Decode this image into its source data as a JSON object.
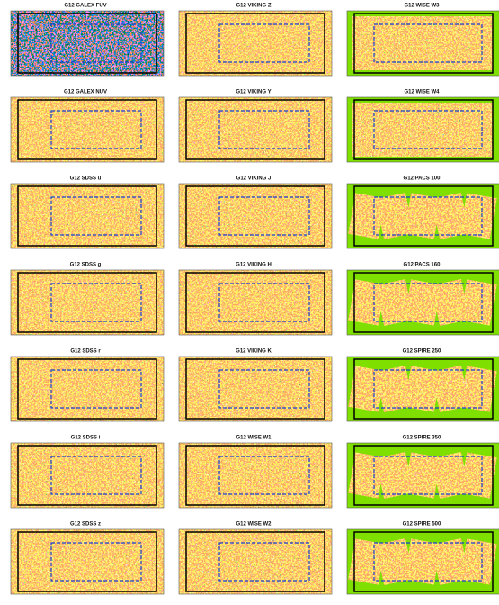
{
  "panels": [
    {
      "title": "G12 GALEX FUV"
    },
    {
      "title": "G12 GALEX NUV"
    },
    {
      "title": "G12 SDSS u"
    },
    {
      "title": "G12 SDSS g"
    },
    {
      "title": "G12 SDSS r"
    },
    {
      "title": "G12 SDSS i"
    },
    {
      "title": "G12 SDSS z"
    },
    {
      "title": "G12 VIKING Z"
    },
    {
      "title": "G12 VIKING Y"
    },
    {
      "title": "G12 VIKING J"
    },
    {
      "title": "G12 VIKING H"
    },
    {
      "title": "G12 VIKING K"
    },
    {
      "title": "G12 WISE W1"
    },
    {
      "title": "G12 WISE W2"
    },
    {
      "title": "G12 WISE W3"
    },
    {
      "title": "G12 WISE W4"
    },
    {
      "title": "G12 PACS 100"
    },
    {
      "title": "G12 PACS 160"
    },
    {
      "title": "G12 SPIRE 250"
    },
    {
      "title": "G12 SPIRE 350"
    },
    {
      "title": "G12 SPIRE 500"
    }
  ]
}
